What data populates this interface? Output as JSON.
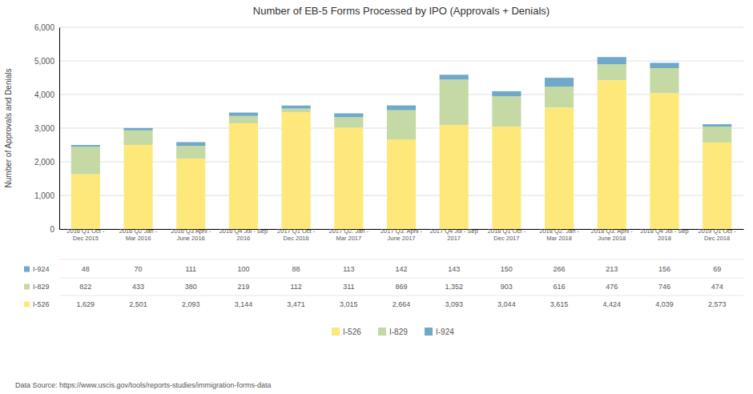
{
  "chart_data": {
    "type": "bar",
    "stacked": true,
    "title": "Number of EB-5 Forms Processed by IPO (Approvals + Denials)",
    "ylabel": "Number of Approvals and Denials",
    "categories": [
      "2016 Q1 Oct -\nDec 2015",
      "2016 Q2 Jan -\nMar 2016",
      "2016 Q3 April -\nJune 2016",
      "2016 Q4 Jul - Sep\n2016",
      "2017 Q1 Oct -\nDec 2016",
      "2017 Q2. Jan -\nMar 2017",
      "2017 Q3. April -\nJune 2017",
      "2017 Q4 Jul - Sep\n2017",
      "2018 Q1 Oct -\nDec 2017",
      "2018 Q2. Jan -\nMar 2018",
      "2018 Q3. April -\nJune 2018",
      "2018 Q4 Jul - Sep\n2018",
      "2019 Q1 Oct -\nDec 2018"
    ],
    "series": [
      {
        "name": "I-526",
        "color": "#FFE87A",
        "values": [
          1629,
          2501,
          2093,
          3144,
          3471,
          3015,
          2664,
          3093,
          3044,
          3615,
          4424,
          4039,
          2573
        ],
        "value_labels": [
          "1,629",
          "2,501",
          "2,093",
          "3,144",
          "3,471",
          "3,015",
          "2,664",
          "3,093",
          "3,044",
          "3,615",
          "4,424",
          "4,039",
          "2,573"
        ]
      },
      {
        "name": "I-829",
        "color": "#C5D9A4",
        "values": [
          822,
          433,
          380,
          219,
          112,
          311,
          869,
          1352,
          903,
          616,
          476,
          746,
          474
        ],
        "value_labels": [
          "822",
          "433",
          "380",
          "219",
          "112",
          "311",
          "869",
          "1,352",
          "903",
          "616",
          "476",
          "746",
          "474"
        ]
      },
      {
        "name": "I-924",
        "color": "#6FA8C8",
        "values": [
          48,
          70,
          111,
          100,
          88,
          113,
          142,
          143,
          150,
          266,
          213,
          156,
          69
        ]
      }
    ],
    "ylim": [
      0,
      6000
    ],
    "yticks": [
      0,
      {
        "value": 1000,
        "label": "1,000"
      },
      {
        "value": 2000,
        "label": "2,000"
      },
      {
        "value": 3000,
        "label": "3,000"
      },
      {
        "value": 4000,
        "label": "4,000"
      },
      {
        "value": 5000,
        "label": "5,000"
      },
      {
        "value": 6000,
        "label": "6,000"
      }
    ],
    "grid": true,
    "legend": "bottom",
    "annotations": [
      "Data Source: https://www.uscis.gov/tools/reports-studies/immigration-forms-data"
    ]
  }
}
